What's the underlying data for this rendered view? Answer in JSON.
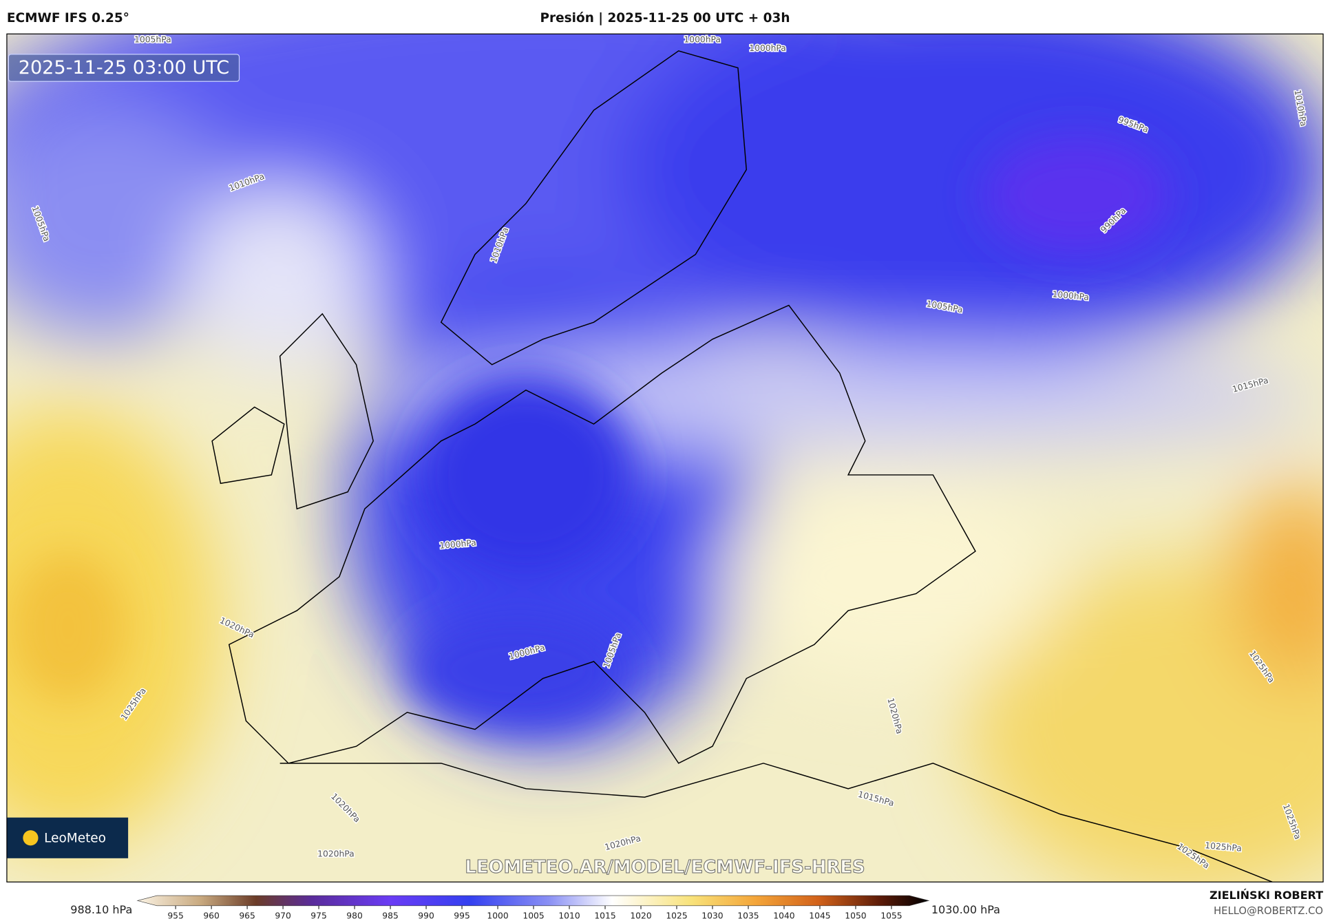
{
  "header": {
    "model": "ECMWF IFS 0.25°",
    "title": "Presión | 2025-11-25 00 UTC + 03h"
  },
  "map": {
    "timestamp": "2025-11-25 03:00 UTC",
    "contour_labels": [
      "1005hPa",
      "1000hPa",
      "1000hPa",
      "1010hPa",
      "995hPa",
      "990hPa",
      "1010hPa",
      "1005hPa",
      "1010hPa",
      "1005hPa",
      "1000hPa",
      "1015hPa",
      "1000hPa",
      "1020hPa",
      "1000hPa",
      "1005hPa",
      "1025hPa",
      "1020hPa",
      "1025hPa",
      "1015hPa",
      "1020hPa",
      "1020hPa",
      "1020hPa",
      "1025hPa",
      "1025hPa",
      "1025hPa"
    ],
    "watermark": "LEOMETEO.AR/MODEL/ECMWF-IFS-HRES",
    "logo": "LeoMeteo"
  },
  "colorbar": {
    "min_label": "988.10 hPa",
    "max_label": "1030.00 hPa",
    "ticks": [
      955,
      960,
      965,
      970,
      975,
      980,
      985,
      990,
      995,
      1000,
      1005,
      1010,
      1015,
      1020,
      1025,
      1030,
      1035,
      1040,
      1045,
      1050,
      1055
    ]
  },
  "footer": {
    "author": "ZIELIŃSKI ROBERT",
    "contact": "HELLO@ROBERTZ.CO"
  }
}
